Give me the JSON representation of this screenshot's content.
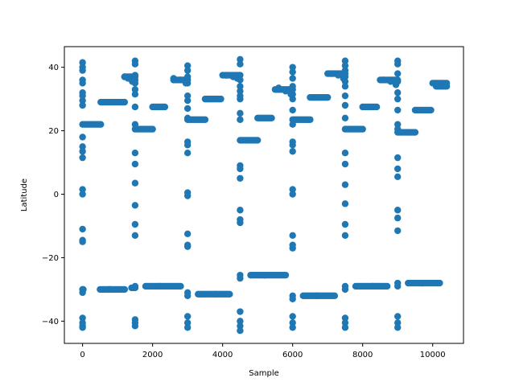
{
  "chart_data": {
    "type": "scatter",
    "title": "",
    "xlabel": "Sample",
    "ylabel": "Latitude",
    "xlim": [
      -520,
      10880
    ],
    "ylim": [
      -47,
      46.5
    ],
    "xticks": [
      0,
      2000,
      4000,
      6000,
      8000,
      10000
    ],
    "xtick_labels": [
      "0",
      "2000",
      "4000",
      "6000",
      "8000",
      "10000"
    ],
    "yticks": [
      -40,
      -20,
      0,
      20,
      40
    ],
    "ytick_labels": [
      "−40",
      "−20",
      "0",
      "20",
      "40"
    ],
    "grid": false,
    "legend": "none",
    "marker_color": "#1f77b4",
    "marker": "circle",
    "segments": [
      {
        "x0": 0,
        "x1": 520,
        "y": 22
      },
      {
        "x0": 520,
        "x1": 1200,
        "y": 29
      },
      {
        "x0": 1200,
        "x1": 1500,
        "y": 37
      },
      {
        "x0": 1500,
        "x1": 2000,
        "y": 20.5
      },
      {
        "x0": 2000,
        "x1": 2350,
        "y": 27.5
      },
      {
        "x0": 2600,
        "x1": 3000,
        "y": 36
      },
      {
        "x0": 3000,
        "x1": 3500,
        "y": 23.5
      },
      {
        "x0": 3500,
        "x1": 3950,
        "y": 30
      },
      {
        "x0": 4000,
        "x1": 4500,
        "y": 37.5
      },
      {
        "x0": 4500,
        "x1": 5000,
        "y": 17
      },
      {
        "x0": 5000,
        "x1": 5400,
        "y": 24
      },
      {
        "x0": 5500,
        "x1": 6000,
        "y": 33
      },
      {
        "x0": 6000,
        "x1": 6500,
        "y": 23.5
      },
      {
        "x0": 6500,
        "x1": 7000,
        "y": 30.5
      },
      {
        "x0": 7000,
        "x1": 7500,
        "y": 38
      },
      {
        "x0": 7500,
        "x1": 8000,
        "y": 20.5
      },
      {
        "x0": 8000,
        "x1": 8400,
        "y": 27.5
      },
      {
        "x0": 8500,
        "x1": 9000,
        "y": 36
      },
      {
        "x0": 9000,
        "x1": 9500,
        "y": 19.5
      },
      {
        "x0": 9500,
        "x1": 9950,
        "y": 26.5
      },
      {
        "x0": 10000,
        "x1": 10400,
        "y": 35
      },
      {
        "x0": 10100,
        "x1": 10400,
        "y": 34
      },
      {
        "x0": 0,
        "x1": 20,
        "y": -30
      },
      {
        "x0": 500,
        "x1": 800,
        "y": -30
      },
      {
        "x0": 750,
        "x1": 1200,
        "y": -30
      },
      {
        "x0": 1400,
        "x1": 1500,
        "y": -29.5
      },
      {
        "x0": 1800,
        "x1": 2200,
        "y": -29
      },
      {
        "x0": 2200,
        "x1": 2800,
        "y": -29
      },
      {
        "x0": 3300,
        "x1": 3800,
        "y": -31.5
      },
      {
        "x0": 3800,
        "x1": 4200,
        "y": -31.5
      },
      {
        "x0": 4800,
        "x1": 5200,
        "y": -25.5
      },
      {
        "x0": 5200,
        "x1": 5800,
        "y": -25.5
      },
      {
        "x0": 6300,
        "x1": 6700,
        "y": -32
      },
      {
        "x0": 6700,
        "x1": 7200,
        "y": -32
      },
      {
        "x0": 7800,
        "x1": 8300,
        "y": -29
      },
      {
        "x0": 8300,
        "x1": 8700,
        "y": -29
      },
      {
        "x0": 9300,
        "x1": 9700,
        "y": -28
      },
      {
        "x0": 9700,
        "x1": 10200,
        "y": -28
      }
    ],
    "points": [
      {
        "x": 0,
        "y": 41.5
      },
      {
        "x": 0,
        "y": 40
      },
      {
        "x": 0,
        "y": 39
      },
      {
        "x": 0,
        "y": 36
      },
      {
        "x": 0,
        "y": 35
      },
      {
        "x": 0,
        "y": 32
      },
      {
        "x": 0,
        "y": 31
      },
      {
        "x": 0,
        "y": 29.5
      },
      {
        "x": 0,
        "y": 28
      },
      {
        "x": 0,
        "y": 18
      },
      {
        "x": 0,
        "y": 15
      },
      {
        "x": 0,
        "y": 13.5
      },
      {
        "x": 0,
        "y": 11.5
      },
      {
        "x": 0,
        "y": 1.5
      },
      {
        "x": 0,
        "y": 0
      },
      {
        "x": 0,
        "y": -11
      },
      {
        "x": 0,
        "y": -14.5
      },
      {
        "x": 0,
        "y": -15
      },
      {
        "x": 0,
        "y": -30
      },
      {
        "x": 0,
        "y": -31
      },
      {
        "x": 0,
        "y": -39
      },
      {
        "x": 0,
        "y": -40.5
      },
      {
        "x": 0,
        "y": -41.5
      },
      {
        "x": 0,
        "y": -42
      },
      {
        "x": 1500,
        "y": 42
      },
      {
        "x": 1500,
        "y": 41
      },
      {
        "x": 1500,
        "y": 37.5
      },
      {
        "x": 1500,
        "y": 36
      },
      {
        "x": 1500,
        "y": 35
      },
      {
        "x": 1500,
        "y": 33
      },
      {
        "x": 1500,
        "y": 31.5
      },
      {
        "x": 1500,
        "y": 27.5
      },
      {
        "x": 1500,
        "y": 22
      },
      {
        "x": 1500,
        "y": 13
      },
      {
        "x": 1500,
        "y": 9.5
      },
      {
        "x": 1500,
        "y": 3.5
      },
      {
        "x": 1500,
        "y": -3.5
      },
      {
        "x": 1500,
        "y": -9.5
      },
      {
        "x": 1500,
        "y": -13
      },
      {
        "x": 1500,
        "y": -29
      },
      {
        "x": 1500,
        "y": -39.5
      },
      {
        "x": 1500,
        "y": -40.5
      },
      {
        "x": 1500,
        "y": -41.5
      },
      {
        "x": 3000,
        "y": 40.5
      },
      {
        "x": 3000,
        "y": 39
      },
      {
        "x": 3000,
        "y": 37
      },
      {
        "x": 3000,
        "y": 35
      },
      {
        "x": 3000,
        "y": 31
      },
      {
        "x": 3000,
        "y": 29.5
      },
      {
        "x": 3000,
        "y": 27
      },
      {
        "x": 3000,
        "y": 24
      },
      {
        "x": 3000,
        "y": 16.5
      },
      {
        "x": 3000,
        "y": 15.5
      },
      {
        "x": 3000,
        "y": 13
      },
      {
        "x": 3000,
        "y": 0.5
      },
      {
        "x": 3000,
        "y": -0.5
      },
      {
        "x": 3000,
        "y": -12.5
      },
      {
        "x": 3000,
        "y": -16
      },
      {
        "x": 3000,
        "y": -16.5
      },
      {
        "x": 3000,
        "y": -31
      },
      {
        "x": 3000,
        "y": -32
      },
      {
        "x": 3000,
        "y": -38.5
      },
      {
        "x": 3000,
        "y": -40.5
      },
      {
        "x": 3000,
        "y": -42
      },
      {
        "x": 4500,
        "y": 42.5
      },
      {
        "x": 4500,
        "y": 41
      },
      {
        "x": 4500,
        "y": 36
      },
      {
        "x": 4500,
        "y": 34
      },
      {
        "x": 4500,
        "y": 32.5
      },
      {
        "x": 4500,
        "y": 31
      },
      {
        "x": 4500,
        "y": 30
      },
      {
        "x": 4500,
        "y": 25.5
      },
      {
        "x": 4500,
        "y": 23.5
      },
      {
        "x": 4500,
        "y": 9
      },
      {
        "x": 4500,
        "y": 8
      },
      {
        "x": 4500,
        "y": 5
      },
      {
        "x": 4500,
        "y": -5
      },
      {
        "x": 4500,
        "y": -8
      },
      {
        "x": 4500,
        "y": -9
      },
      {
        "x": 4500,
        "y": -25.5
      },
      {
        "x": 4500,
        "y": -26.5
      },
      {
        "x": 4500,
        "y": -37
      },
      {
        "x": 4500,
        "y": -40
      },
      {
        "x": 4500,
        "y": -41.5
      },
      {
        "x": 4500,
        "y": -43
      },
      {
        "x": 6000,
        "y": 40
      },
      {
        "x": 6000,
        "y": 38.5
      },
      {
        "x": 6000,
        "y": 36.5
      },
      {
        "x": 6000,
        "y": 34
      },
      {
        "x": 6000,
        "y": 31.5
      },
      {
        "x": 6000,
        "y": 30
      },
      {
        "x": 6000,
        "y": 26.5
      },
      {
        "x": 6000,
        "y": 22
      },
      {
        "x": 6000,
        "y": 16.5
      },
      {
        "x": 6000,
        "y": 15.5
      },
      {
        "x": 6000,
        "y": 13.5
      },
      {
        "x": 6000,
        "y": 1.5
      },
      {
        "x": 6000,
        "y": 0
      },
      {
        "x": 6000,
        "y": -13
      },
      {
        "x": 6000,
        "y": -16
      },
      {
        "x": 6000,
        "y": -17
      },
      {
        "x": 6000,
        "y": -32
      },
      {
        "x": 6000,
        "y": -33
      },
      {
        "x": 6000,
        "y": -38.5
      },
      {
        "x": 6000,
        "y": -40.5
      },
      {
        "x": 6000,
        "y": -42
      },
      {
        "x": 7500,
        "y": 42
      },
      {
        "x": 7500,
        "y": 40.5
      },
      {
        "x": 7500,
        "y": 39
      },
      {
        "x": 7500,
        "y": 37
      },
      {
        "x": 7500,
        "y": 35.5
      },
      {
        "x": 7500,
        "y": 34
      },
      {
        "x": 7500,
        "y": 31
      },
      {
        "x": 7500,
        "y": 28
      },
      {
        "x": 7500,
        "y": 24
      },
      {
        "x": 7500,
        "y": 13
      },
      {
        "x": 7500,
        "y": 9.5
      },
      {
        "x": 7500,
        "y": 3
      },
      {
        "x": 7500,
        "y": -3
      },
      {
        "x": 7500,
        "y": -9.5
      },
      {
        "x": 7500,
        "y": -13
      },
      {
        "x": 7500,
        "y": -29
      },
      {
        "x": 7500,
        "y": -30
      },
      {
        "x": 7500,
        "y": -39
      },
      {
        "x": 7500,
        "y": -40.5
      },
      {
        "x": 7500,
        "y": -42
      },
      {
        "x": 9000,
        "y": 42
      },
      {
        "x": 9000,
        "y": 41
      },
      {
        "x": 9000,
        "y": 38
      },
      {
        "x": 9000,
        "y": 35.5
      },
      {
        "x": 9000,
        "y": 32
      },
      {
        "x": 9000,
        "y": 30
      },
      {
        "x": 9000,
        "y": 26.5
      },
      {
        "x": 9000,
        "y": 22
      },
      {
        "x": 9000,
        "y": 20.5
      },
      {
        "x": 9000,
        "y": 11.5
      },
      {
        "x": 9000,
        "y": 8
      },
      {
        "x": 9000,
        "y": 5.5
      },
      {
        "x": 9000,
        "y": -5
      },
      {
        "x": 9000,
        "y": -7.5
      },
      {
        "x": 9000,
        "y": -11.5
      },
      {
        "x": 9000,
        "y": -28
      },
      {
        "x": 9000,
        "y": -29
      },
      {
        "x": 9000,
        "y": -38.5
      },
      {
        "x": 9000,
        "y": -40.5
      },
      {
        "x": 9000,
        "y": -42
      },
      {
        "x": 1200,
        "y": 37
      },
      {
        "x": 1300,
        "y": 36.5
      },
      {
        "x": 1420,
        "y": 35.5
      },
      {
        "x": 2600,
        "y": 36.5
      },
      {
        "x": 2800,
        "y": 36
      },
      {
        "x": 2950,
        "y": 35
      },
      {
        "x": 4100,
        "y": 37.5
      },
      {
        "x": 4300,
        "y": 37
      },
      {
        "x": 4420,
        "y": 36.5
      },
      {
        "x": 5600,
        "y": 33.5
      },
      {
        "x": 5800,
        "y": 32.5
      },
      {
        "x": 5950,
        "y": 31.5
      },
      {
        "x": 7100,
        "y": 38
      },
      {
        "x": 7300,
        "y": 37.5
      },
      {
        "x": 7450,
        "y": 36.5
      },
      {
        "x": 8600,
        "y": 36
      },
      {
        "x": 8800,
        "y": 35.5
      },
      {
        "x": 8950,
        "y": 34.5
      }
    ]
  }
}
